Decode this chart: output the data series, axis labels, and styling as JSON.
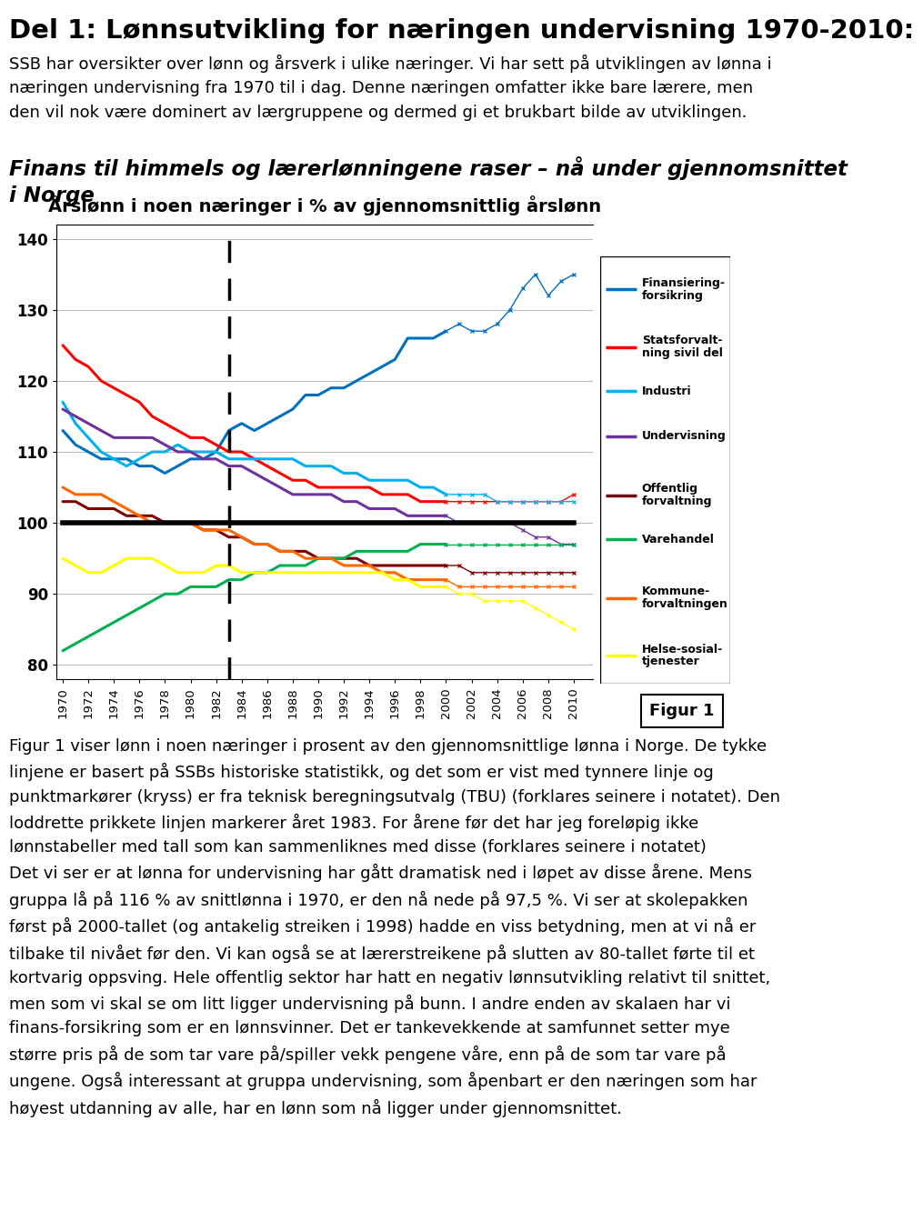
{
  "title_main": "Del 1: Lønnsutvikling for næringen undervisning 1970-2010:",
  "body_text_line1": "SSB har oversikter over lønn og årsverk i ulike næringer. Vi har sett på utviklingen av lønna i",
  "body_text_line2": "næringen undervisning fra 1970 til i dag. Denne næringen omfatter ikke bare lærere, men",
  "body_text_line3": "den vil nok være dominert av lærgruppene og dermed gi et brukbart bilde av utviklingen.",
  "subtitle_line1": "Finans til himmels og lærerlønningene raser – nå under gjennomsnittet",
  "subtitle_line2": "i Norge",
  "chart_title": "Årslønn i noen næringer i % av gjennomsnittlig årslønn",
  "figur_label": "Figur 1",
  "bottom_text": "Figur 1 viser lønn i noen næringer i prosent av den gjennomsnittlige lønna i Norge. De tykke\nlinjene er basert på SSBs historiske statistikk, og det som er vist med tynnere linje og\npunktmarkører (kryss) er fra teknisk beregningsutvalg (TBU) (forklares seinere i notatet). Den\nloddrette prikkete linjen markerer året 1983. For årene før det har jeg foreløpig ikke\nlønnstabeller med tall som kan sammenliknes med disse (forklares seinere i notatet)\nDet vi ser er at lønna for undervisning har gått dramatisk ned i løpet av disse årene. Mens\ngruppa lå på 116 % av snittlønna i 1970, er den nå nede på 97,5 %. Vi ser at skolepakken\nførst på 2000-tallet (og antakelig streiken i 1998) hadde en viss betydning, men at vi nå er\ntilbake til nivået før den. Vi kan også se at lærerstreikene på slutten av 80-tallet førte til et\nkortvarig oppsving. Hele offentlig sektor har hatt en negativ lønnsutvikling relativt til snittet,\nmen som vi skal se om litt ligger undervisning på bunn. I andre enden av skalaen har vi\nfinans-forsikring som er en lønnsvinner. Det er tankevekkende at samfunnet setter mye\nstørre pris på de som tar vare på/spiller vekk pengene våre, enn på de som tar vare på\nungene. Også interessant at gruppa undervisning, som åpenbart er den næringen som har\nhøyest utdanning av alle, har en lønn som nå ligger under gjennomsnittet.",
  "years": [
    1970,
    1971,
    1972,
    1973,
    1974,
    1975,
    1976,
    1977,
    1978,
    1979,
    1980,
    1981,
    1982,
    1983,
    1984,
    1985,
    1986,
    1987,
    1988,
    1989,
    1990,
    1991,
    1992,
    1993,
    1994,
    1995,
    1996,
    1997,
    1998,
    1999,
    2000,
    2001,
    2002,
    2003,
    2004,
    2005,
    2006,
    2007,
    2008,
    2009,
    2010
  ],
  "finansiering": [
    113,
    111,
    110,
    109,
    109,
    109,
    108,
    108,
    107,
    108,
    109,
    109,
    110,
    113,
    114,
    113,
    114,
    115,
    116,
    118,
    118,
    119,
    119,
    120,
    121,
    122,
    123,
    126,
    126,
    126,
    127,
    128,
    127,
    127,
    128,
    130,
    133,
    135,
    132,
    134,
    135
  ],
  "statsforvaltning": [
    125,
    123,
    122,
    120,
    119,
    118,
    117,
    115,
    114,
    113,
    112,
    112,
    111,
    110,
    110,
    109,
    108,
    107,
    106,
    106,
    105,
    105,
    105,
    105,
    105,
    104,
    104,
    104,
    103,
    103,
    103,
    103,
    103,
    103,
    103,
    103,
    103,
    103,
    103,
    103,
    104
  ],
  "industri": [
    117,
    114,
    112,
    110,
    109,
    108,
    109,
    110,
    110,
    111,
    110,
    110,
    110,
    109,
    109,
    109,
    109,
    109,
    109,
    108,
    108,
    108,
    107,
    107,
    106,
    106,
    106,
    106,
    105,
    105,
    104,
    104,
    104,
    104,
    103,
    103,
    103,
    103,
    103,
    103,
    103
  ],
  "undervisning": [
    116,
    115,
    114,
    113,
    112,
    112,
    112,
    112,
    111,
    110,
    110,
    109,
    109,
    108,
    108,
    107,
    106,
    105,
    104,
    104,
    104,
    104,
    103,
    103,
    102,
    102,
    102,
    101,
    101,
    101,
    101,
    100,
    100,
    100,
    100,
    100,
    99,
    98,
    98,
    97,
    97
  ],
  "offentlig_forvaltning": [
    103,
    103,
    102,
    102,
    102,
    101,
    101,
    101,
    100,
    100,
    100,
    99,
    99,
    98,
    98,
    97,
    97,
    96,
    96,
    96,
    95,
    95,
    95,
    95,
    94,
    94,
    94,
    94,
    94,
    94,
    94,
    94,
    93,
    93,
    93,
    93,
    93,
    93,
    93,
    93,
    93
  ],
  "varehandel": [
    82,
    83,
    84,
    85,
    86,
    87,
    88,
    89,
    90,
    90,
    91,
    91,
    91,
    92,
    92,
    93,
    93,
    94,
    94,
    94,
    95,
    95,
    95,
    96,
    96,
    96,
    96,
    96,
    97,
    97,
    97,
    97,
    97,
    97,
    97,
    97,
    97,
    97,
    97,
    97,
    97
  ],
  "kommuneforvaltning": [
    105,
    104,
    104,
    104,
    103,
    102,
    101,
    100,
    100,
    100,
    100,
    99,
    99,
    99,
    98,
    97,
    97,
    96,
    96,
    95,
    95,
    95,
    94,
    94,
    94,
    93,
    93,
    92,
    92,
    92,
    92,
    91,
    91,
    91,
    91,
    91,
    91,
    91,
    91,
    91,
    91
  ],
  "helse_sosial": [
    95,
    94,
    93,
    93,
    94,
    95,
    95,
    95,
    94,
    93,
    93,
    93,
    94,
    94,
    93,
    93,
    93,
    93,
    93,
    93,
    93,
    93,
    93,
    93,
    93,
    93,
    92,
    92,
    91,
    91,
    91,
    90,
    90,
    89,
    89,
    89,
    89,
    88,
    87,
    86,
    85
  ],
  "samlet": [
    100,
    100,
    100,
    100,
    100,
    100,
    100,
    100,
    100,
    100,
    100,
    100,
    100,
    100,
    100,
    100,
    100,
    100,
    100,
    100,
    100,
    100,
    100,
    100,
    100,
    100,
    100,
    100,
    100,
    100,
    100,
    100,
    100,
    100,
    100,
    100,
    100,
    100,
    100,
    100,
    100
  ],
  "tbu_years": [
    2000,
    2001,
    2002,
    2003,
    2004,
    2005,
    2006,
    2007,
    2008,
    2009,
    2010
  ],
  "tbu_finansiering": [
    127,
    128,
    127,
    127,
    128,
    130,
    133,
    135,
    132,
    134,
    135
  ],
  "tbu_statsforvaltning": [
    103,
    103,
    103,
    103,
    103,
    103,
    103,
    103,
    103,
    103,
    104
  ],
  "tbu_industri": [
    104,
    104,
    104,
    104,
    103,
    103,
    103,
    103,
    103,
    103,
    103
  ],
  "tbu_undervisning": [
    101,
    100,
    100,
    100,
    100,
    100,
    99,
    98,
    98,
    97,
    97
  ],
  "tbu_offentlig": [
    94,
    94,
    93,
    93,
    93,
    93,
    93,
    93,
    93,
    93,
    93
  ],
  "tbu_varehandel": [
    97,
    97,
    97,
    97,
    97,
    97,
    97,
    97,
    97,
    97,
    97
  ],
  "tbu_kommunal": [
    92,
    91,
    91,
    91,
    91,
    91,
    91,
    91,
    91,
    91,
    91
  ],
  "tbu_helse": [
    91,
    90,
    90,
    89,
    89,
    89,
    89,
    88,
    87,
    86,
    85
  ],
  "colors": {
    "finansiering": "#0070C0",
    "statsforvaltning": "#FF0000",
    "industri": "#00B0F0",
    "undervisning": "#7030A0",
    "offentlig_forvaltning": "#7B0000",
    "varehandel": "#00B050",
    "kommuneforvaltning": "#FF6600",
    "helse_sosial": "#FFFF00",
    "samlet": "#000000"
  },
  "dashed_line_x": 1983,
  "ylim": [
    78,
    142
  ],
  "yticks": [
    80,
    90,
    100,
    110,
    120,
    130,
    140
  ],
  "xlim_start": 1969.5,
  "xlim_end": 2011.5
}
